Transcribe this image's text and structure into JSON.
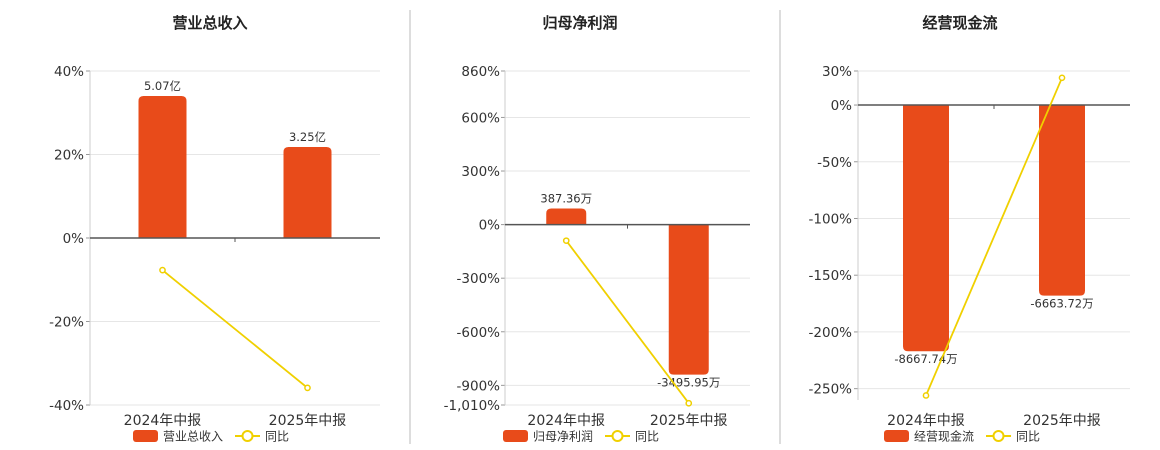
{
  "chart_data": [
    {
      "type": "bar",
      "title": "营业总收入",
      "categories": [
        "2024年中报",
        "2025年中报"
      ],
      "ylim": [
        -40,
        40
      ],
      "y_ticks": [
        "40%",
        "20%",
        "0%",
        "-20%",
        "-40%"
      ],
      "y_tick_values": [
        40,
        20,
        0,
        -20,
        -40
      ],
      "series": [
        {
          "name": "营业总收入",
          "kind": "bar",
          "values": [
            34,
            21.8
          ],
          "labels": [
            "5.07亿",
            "3.25亿"
          ]
        },
        {
          "name": "同比",
          "kind": "line",
          "values": [
            -7.7,
            -35.9
          ]
        }
      ]
    },
    {
      "type": "bar",
      "title": "归母净利润",
      "categories": [
        "2024年中报",
        "2025年中报"
      ],
      "ylim": [
        -1010,
        860
      ],
      "y_ticks": [
        "860%",
        "600%",
        "300%",
        "0%",
        "-300%",
        "-600%",
        "-900%",
        "-1,010%"
      ],
      "y_tick_values": [
        860,
        600,
        300,
        0,
        -300,
        -600,
        -900,
        -1010
      ],
      "series": [
        {
          "name": "归母净利润",
          "kind": "bar",
          "values": [
            90,
            -840
          ],
          "labels": [
            "387.36万",
            "-3495.95万"
          ]
        },
        {
          "name": "同比",
          "kind": "line",
          "values": [
            -90,
            -1000
          ]
        }
      ]
    },
    {
      "type": "bar",
      "title": "经营现金流",
      "categories": [
        "2024年中报",
        "2025年中报"
      ],
      "ylim": [
        -260,
        30
      ],
      "y_ticks": [
        "30%",
        "0%",
        "-50%",
        "-100%",
        "-150%",
        "-200%",
        "-250%"
      ],
      "y_tick_values": [
        30,
        0,
        -50,
        -100,
        -150,
        -200,
        -250
      ],
      "series": [
        {
          "name": "经营现金流",
          "kind": "bar",
          "values": [
            -217,
            -168
          ],
          "labels": [
            "-8667.74万",
            "-6663.72万"
          ]
        },
        {
          "name": "同比",
          "kind": "line",
          "values": [
            -256,
            24
          ]
        }
      ]
    }
  ],
  "colors": {
    "bar": "#e84b1a",
    "line": "#f0d000",
    "grid": "#e6e6e6",
    "axis": "#555555",
    "separator": "#bbbbbb"
  },
  "legend": {
    "placement": "bottom"
  }
}
